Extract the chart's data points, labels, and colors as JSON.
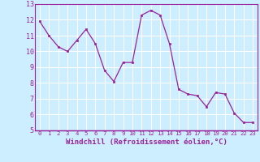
{
  "x": [
    0,
    1,
    2,
    3,
    4,
    5,
    6,
    7,
    8,
    9,
    10,
    11,
    12,
    13,
    14,
    15,
    16,
    17,
    18,
    19,
    20,
    21,
    22,
    23
  ],
  "y": [
    11.9,
    11.0,
    10.3,
    10.0,
    10.7,
    11.4,
    10.5,
    8.8,
    8.1,
    9.3,
    9.3,
    12.3,
    12.6,
    12.3,
    10.5,
    7.6,
    7.3,
    7.2,
    6.5,
    7.4,
    7.3,
    6.1,
    5.5,
    5.5
  ],
  "line_color": "#992299",
  "marker_color": "#992299",
  "bg_color": "#cceeff",
  "grid_color": "#ffffff",
  "xlabel": "Windchill (Refroidissement éolien,°C)",
  "xlim": [
    -0.5,
    23.5
  ],
  "ylim": [
    5,
    13
  ],
  "yticks": [
    5,
    6,
    7,
    8,
    9,
    10,
    11,
    12,
    13
  ],
  "xticks": [
    0,
    1,
    2,
    3,
    4,
    5,
    6,
    7,
    8,
    9,
    10,
    11,
    12,
    13,
    14,
    15,
    16,
    17,
    18,
    19,
    20,
    21,
    22,
    23
  ],
  "label_color": "#992299",
  "tick_color": "#992299",
  "axis_color": "#992299",
  "separator_color": "#992299"
}
